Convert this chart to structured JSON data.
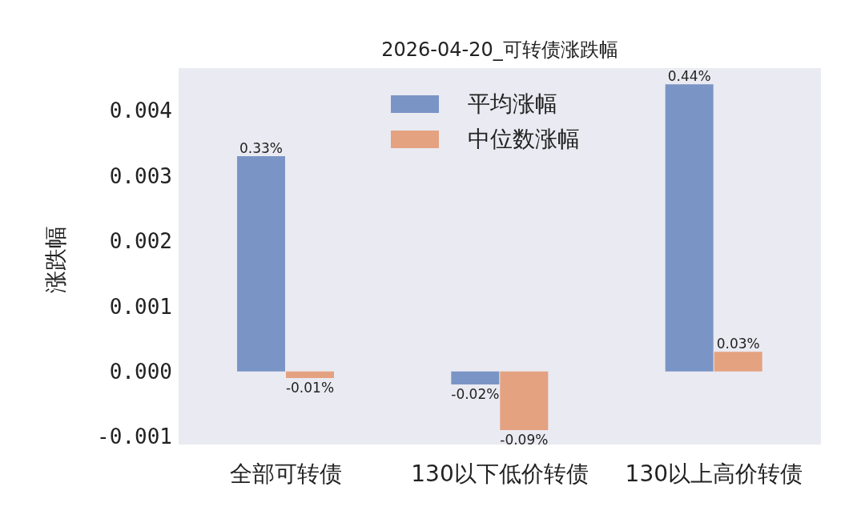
{
  "chart_data": {
    "type": "bar",
    "title": "2026-04-20_可转债涨跌幅",
    "ylabel": "涨跌幅",
    "categories": [
      "全部可转债",
      "130以下低价转债",
      "130以上高价转债"
    ],
    "series": [
      {
        "name": "平均涨幅",
        "color": "#7a95c5",
        "values": [
          0.0033,
          -0.0002,
          0.0044
        ],
        "value_labels": [
          "0.33%",
          "-0.02%",
          "0.44%"
        ]
      },
      {
        "name": "中位数涨幅",
        "color": "#e4a281",
        "values": [
          -0.0001,
          -0.0009,
          0.0003
        ],
        "value_labels": [
          "-0.01%",
          "-0.09%",
          "0.03%"
        ]
      }
    ],
    "ylim": [
      -0.00112,
      0.00465
    ],
    "yticks": [
      -0.001,
      {
        "value": 0,
        "label": "0.000"
      },
      0.001,
      0.002,
      0.003,
      0.004
    ],
    "legend": "top"
  }
}
